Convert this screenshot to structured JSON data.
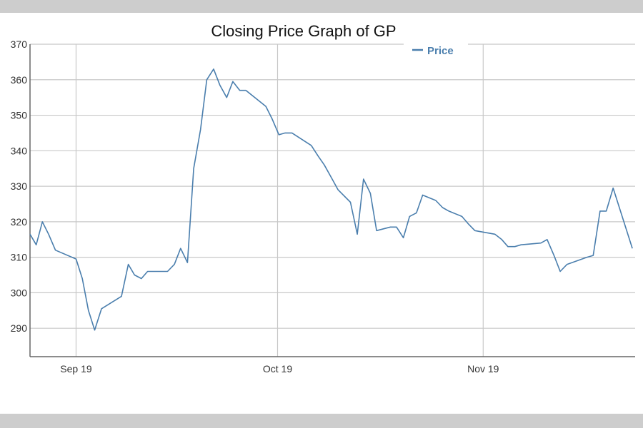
{
  "chart_data": {
    "type": "line",
    "title": "Closing Price Graph of GP",
    "xlabel": "",
    "ylabel": "",
    "ylim": [
      282,
      370
    ],
    "yticks": [
      290,
      300,
      310,
      320,
      330,
      340,
      350,
      360,
      370
    ],
    "xticks": [
      {
        "label": "Sep 19",
        "x": 6.7
      },
      {
        "label": "Oct 19",
        "x": 36.0
      },
      {
        "label": "Nov 19",
        "x": 65.9
      }
    ],
    "xlim": [
      0,
      88
    ],
    "grid": true,
    "legend_position": "top-right",
    "series": [
      {
        "name": "Price",
        "color": "#4a7ead",
        "x": [
          0,
          0.9,
          1.8,
          2.7,
          3.7,
          6.7,
          7.6,
          8.5,
          9.4,
          10.4,
          13.3,
          14.3,
          15.2,
          16.2,
          17.1,
          20.0,
          21.0,
          21.9,
          22.9,
          23.8,
          24.8,
          25.7,
          26.7,
          27.6,
          28.6,
          29.5,
          30.5,
          31.4,
          34.3,
          35.2,
          36.2,
          37.1,
          38.1,
          40.9,
          41.9,
          42.8,
          43.8,
          44.8,
          46.6,
          47.6,
          48.5,
          49.5,
          50.4,
          51.4,
          52.4,
          53.3,
          54.3,
          55.2,
          56.2,
          57.1,
          59.0,
          60.0,
          60.9,
          62.8,
          63.7,
          64.7,
          67.6,
          68.6,
          69.5,
          70.5,
          71.4,
          74.3,
          75.2,
          76.2,
          77.1,
          78.1,
          81.0,
          81.9,
          82.9,
          83.8,
          84.8,
          87.6
        ],
        "values": [
          316.5,
          313.5,
          320.0,
          316.5,
          312.0,
          309.5,
          304.0,
          295.0,
          289.5,
          295.5,
          299.0,
          308.0,
          305.0,
          304.0,
          306.0,
          306.0,
          308.0,
          312.5,
          308.5,
          335.0,
          346.0,
          360.0,
          363.0,
          358.5,
          355.0,
          359.5,
          357.0,
          357.0,
          352.5,
          349.0,
          344.5,
          345.0,
          345.0,
          341.5,
          338.5,
          336.0,
          332.5,
          329.0,
          325.5,
          316.5,
          332.0,
          328.0,
          317.5,
          318.0,
          318.5,
          318.5,
          315.5,
          321.5,
          322.5,
          327.5,
          326.0,
          324.0,
          323.0,
          321.5,
          319.5,
          317.5,
          316.5,
          315.0,
          313.0,
          313.0,
          313.5,
          314.0,
          315.0,
          310.5,
          306.0,
          308.0,
          310.0,
          310.5,
          323.0,
          323.0,
          329.5,
          312.5
        ]
      }
    ]
  }
}
